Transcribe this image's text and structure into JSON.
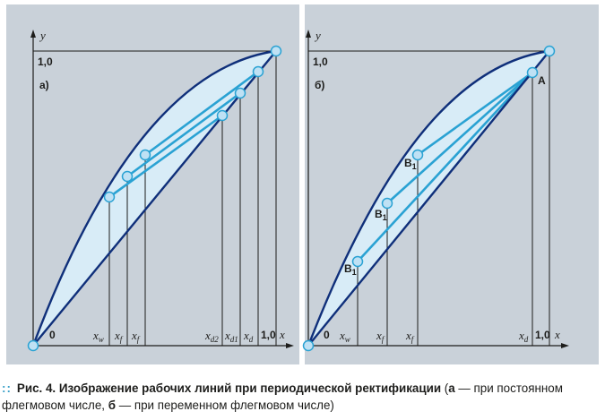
{
  "colors": {
    "panel_bg": "#c9d1d9",
    "lens_fill": "#d8ecf7",
    "curve": "#0f2f7a",
    "operating_line": "#2aa2d3",
    "node_fill": "#bfe1f4",
    "axis": "#1d1d1b"
  },
  "panels": [
    {
      "id": "a",
      "panel_label": "а)",
      "y_axis_label": "y",
      "x_axis_label": "x",
      "y_tick": "1,0",
      "x_end_tick": "1,0",
      "origin_label": "0",
      "x_ticks": [
        {
          "main": "x",
          "sub": "w"
        },
        {
          "main": "x",
          "sub": "f"
        },
        {
          "main": "x",
          "sub": "f"
        },
        {
          "main": "x",
          "sub": "d2"
        },
        {
          "main": "x",
          "sub": "d1"
        },
        {
          "main": "x",
          "sub": "d"
        }
      ],
      "point_labels": []
    },
    {
      "id": "b",
      "panel_label": "б)",
      "y_axis_label": "y",
      "x_axis_label": "x",
      "y_tick": "1,0",
      "x_end_tick": "1,0",
      "origin_label": "0",
      "x_ticks": [
        {
          "main": "x",
          "sub": "w"
        },
        {
          "main": "x",
          "sub": "f"
        },
        {
          "main": "x",
          "sub": "f"
        },
        {
          "main": "x",
          "sub": "d"
        }
      ],
      "point_labels": [
        {
          "main": "B",
          "sub": "1"
        },
        {
          "main": "B",
          "sub": "1"
        },
        {
          "main": "B",
          "sub": "1"
        },
        {
          "main": "A",
          "sub": ""
        }
      ]
    }
  ],
  "caption": {
    "prefix": "Рис. 4.",
    "title": "Изображение рабочих линий при периодической ректификации",
    "open": " (",
    "key_a": "а",
    "text_a": " — при постоянном флегмовом числе, ",
    "key_b": "б",
    "text_b": " — при переменном флегмовом числе)"
  }
}
